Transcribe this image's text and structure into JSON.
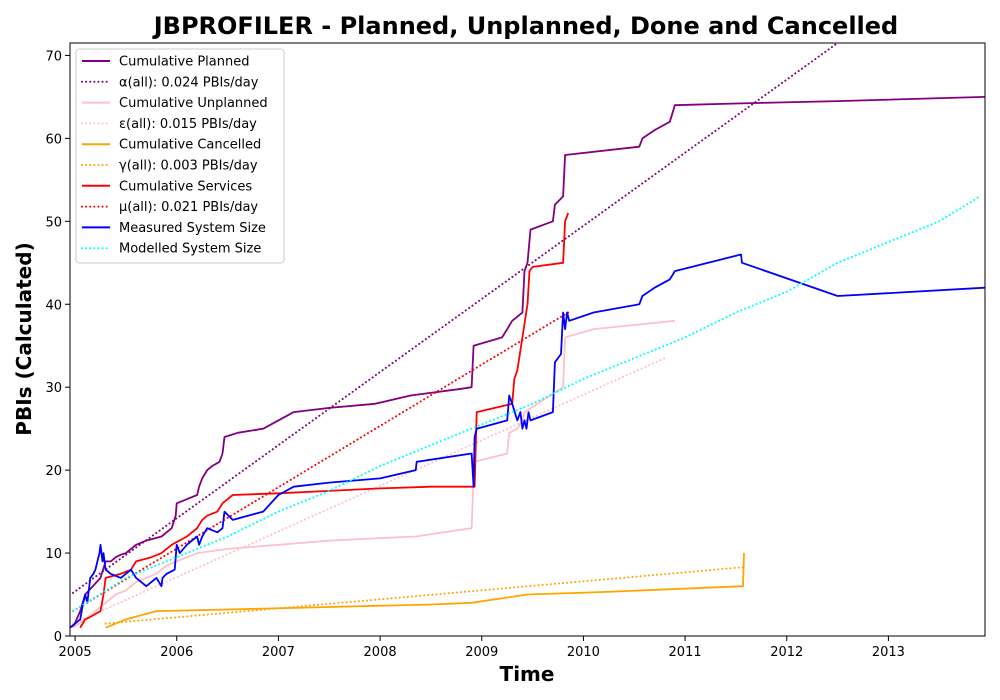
{
  "chart_data": {
    "type": "line",
    "title": "JBPROFILER - Planned, Unplanned, Done  and Cancelled",
    "xlabel": "Time",
    "ylabel": "PBIs (Calculated)",
    "xlim": [
      2004.95,
      2013.95
    ],
    "ylim": [
      0,
      71.5
    ],
    "x_ticks": [
      2005,
      2006,
      2007,
      2008,
      2009,
      2010,
      2011,
      2012,
      2013
    ],
    "y_ticks": [
      0,
      10,
      20,
      30,
      40,
      50,
      60,
      70
    ],
    "grid": false,
    "legend_position": "top-left",
    "series": [
      {
        "name": "Cumulative Planned",
        "color": "#800080",
        "style": "solid",
        "x": [
          2004.98,
          2005.05,
          2005.1,
          2005.25,
          2005.3,
          2005.35,
          2005.4,
          2005.45,
          2005.5,
          2005.55,
          2005.6,
          2005.7,
          2005.85,
          2005.95,
          2005.99,
          2006.0,
          2006.1,
          2006.2,
          2006.22,
          2006.25,
          2006.3,
          2006.35,
          2006.42,
          2006.45,
          2006.47,
          2006.6,
          2006.85,
          2007.0,
          2007.15,
          2007.5,
          2007.95,
          2008.3,
          2008.8,
          2008.9,
          2008.92,
          2009.2,
          2009.25,
          2009.3,
          2009.35,
          2009.4,
          2009.42,
          2009.45,
          2009.48,
          2009.7,
          2009.72,
          2009.8,
          2009.82,
          2010.55,
          2010.58,
          2010.7,
          2010.85,
          2010.9,
          2011.5,
          2012.5,
          2013.95
        ],
        "y": [
          1,
          3,
          5,
          7,
          9,
          9,
          9.5,
          9.8,
          10,
          10.5,
          11,
          11.5,
          12,
          13,
          14.5,
          16,
          16.5,
          17,
          18,
          19,
          20,
          20.5,
          21,
          22,
          24,
          24.5,
          25,
          26,
          27,
          27.5,
          28,
          29,
          29.8,
          30,
          35,
          36,
          37,
          38,
          38.5,
          39,
          44,
          45,
          49,
          50,
          52,
          53,
          58,
          59,
          60,
          61,
          62,
          64,
          64.2,
          64.5,
          65
        ]
      },
      {
        "name": "α(all): 0.024 PBIs/day",
        "color": "#800080",
        "style": "dotted",
        "x": [
          2004.98,
          2012.5
        ],
        "y": [
          5.2,
          71.5
        ]
      },
      {
        "name": "Cumulative Unplanned",
        "color": "#ffc0cb",
        "style": "solid",
        "x": [
          2004.98,
          2005.1,
          2005.2,
          2005.3,
          2005.4,
          2005.5,
          2005.6,
          2005.7,
          2005.8,
          2005.9,
          2006.0,
          2006.2,
          2006.5,
          2007.0,
          2007.5,
          2008.0,
          2008.35,
          2008.9,
          2008.92,
          2008.93,
          2009.25,
          2009.27,
          2009.35,
          2009.4,
          2009.42,
          2009.8,
          2009.82,
          2010.1,
          2010.5,
          2010.9
        ],
        "y": [
          1,
          2,
          3,
          4,
          5,
          5.5,
          6.5,
          7,
          7.5,
          8.5,
          9,
          10,
          10.5,
          11,
          11.5,
          11.8,
          12,
          13,
          19,
          21,
          22,
          24.5,
          25,
          26,
          27,
          30,
          36,
          37,
          37.5,
          38
        ]
      },
      {
        "name": "ε(all): 0.015 PBIs/day",
        "color": "#ffc0cb",
        "style": "dotted",
        "x": [
          2004.98,
          2010.8
        ],
        "y": [
          1.5,
          33.5
        ]
      },
      {
        "name": "Cumulative Cancelled",
        "color": "#ffa500",
        "style": "solid",
        "x": [
          2005.3,
          2005.5,
          2005.8,
          2006.5,
          2007.5,
          2008.5,
          2008.9,
          2009.45,
          2010.2,
          2011.57,
          2011.58
        ],
        "y": [
          1,
          2,
          3,
          3.2,
          3.5,
          3.8,
          4,
          5,
          5.3,
          6,
          10
        ]
      },
      {
        "name": "γ(all): 0.003 PBIs/day",
        "color": "#ffa500",
        "style": "dotted",
        "x": [
          2005.3,
          2011.57
        ],
        "y": [
          1.5,
          8.3
        ]
      },
      {
        "name": "Cumulative Services",
        "color": "#ff0000",
        "style": "solid",
        "x": [
          2005.05,
          2005.1,
          2005.15,
          2005.25,
          2005.28,
          2005.3,
          2005.45,
          2005.55,
          2005.6,
          2005.75,
          2005.85,
          2005.95,
          2006.1,
          2006.2,
          2006.25,
          2006.3,
          2006.4,
          2006.45,
          2006.55,
          2007.0,
          2007.5,
          2008.0,
          2008.5,
          2008.93,
          2008.95,
          2009.3,
          2009.32,
          2009.35,
          2009.45,
          2009.47,
          2009.5,
          2009.8,
          2009.82,
          2009.85
        ],
        "y": [
          1,
          2,
          2.3,
          3,
          5,
          7,
          7.5,
          8,
          9,
          9.5,
          10,
          11,
          12,
          13,
          14,
          14.5,
          15,
          16,
          17,
          17.2,
          17.5,
          17.8,
          18,
          18,
          27,
          28,
          31,
          32,
          40,
          44,
          44.5,
          45,
          50,
          51
        ]
      },
      {
        "name": "μ(all): 0.021 PBIs/day",
        "color": "#ff0000",
        "style": "dotted",
        "x": [
          2004.98,
          2009.85
        ],
        "y": [
          3,
          39
        ]
      },
      {
        "name": "Measured System Size",
        "color": "#0000ff",
        "style": "solid",
        "x": [
          2004.95,
          2005.05,
          2005.08,
          2005.1,
          2005.12,
          2005.15,
          2005.18,
          2005.2,
          2005.22,
          2005.24,
          2005.25,
          2005.27,
          2005.28,
          2005.3,
          2005.35,
          2005.45,
          2005.5,
          2005.55,
          2005.6,
          2005.7,
          2005.8,
          2005.85,
          2005.86,
          2005.9,
          2005.98,
          2006.0,
          2006.03,
          2006.1,
          2006.15,
          2006.2,
          2006.22,
          2006.25,
          2006.3,
          2006.4,
          2006.45,
          2006.47,
          2006.55,
          2006.85,
          2007.0,
          2007.15,
          2007.5,
          2008.0,
          2008.35,
          2008.36,
          2008.9,
          2008.92,
          2008.93,
          2008.95,
          2009.25,
          2009.27,
          2009.3,
          2009.35,
          2009.38,
          2009.4,
          2009.42,
          2009.44,
          2009.46,
          2009.48,
          2009.7,
          2009.72,
          2009.78,
          2009.8,
          2009.82,
          2009.84,
          2009.86,
          2010.1,
          2010.55,
          2010.58,
          2010.7,
          2010.85,
          2010.9,
          2011.55,
          2011.56,
          2012.5,
          2013.95
        ],
        "y": [
          1,
          2,
          4,
          5,
          4,
          7,
          7.5,
          8,
          9,
          10,
          11,
          9,
          10,
          8,
          7.5,
          7,
          7.5,
          8,
          7,
          6,
          7,
          6,
          7,
          7.5,
          8,
          11,
          10,
          11,
          11.5,
          12,
          11,
          12,
          13,
          12.5,
          13,
          15,
          14,
          15,
          17,
          18,
          18.5,
          19,
          20,
          21,
          22,
          18,
          24,
          25,
          26,
          29,
          28,
          26,
          27,
          25,
          26,
          25,
          27,
          26,
          27,
          33,
          34,
          39,
          37,
          39,
          38,
          39,
          40,
          41,
          42,
          43,
          44,
          46,
          45,
          41,
          42
        ]
      },
      {
        "name": "Modelled System Size",
        "color": "#00ffff",
        "style": "dotted",
        "x": [
          2004.98,
          2005.5,
          2006.0,
          2006.5,
          2007.0,
          2007.5,
          2008.0,
          2008.5,
          2009.0,
          2009.5,
          2010.0,
          2010.5,
          2011.0,
          2011.5,
          2012.0,
          2012.5,
          2013.0,
          2013.5,
          2013.9
        ],
        "y": [
          3,
          7,
          9.5,
          12,
          15,
          17.5,
          20.5,
          23,
          25.5,
          28,
          31,
          33.5,
          36,
          39,
          41.5,
          45,
          47.5,
          50,
          53
        ]
      }
    ]
  }
}
